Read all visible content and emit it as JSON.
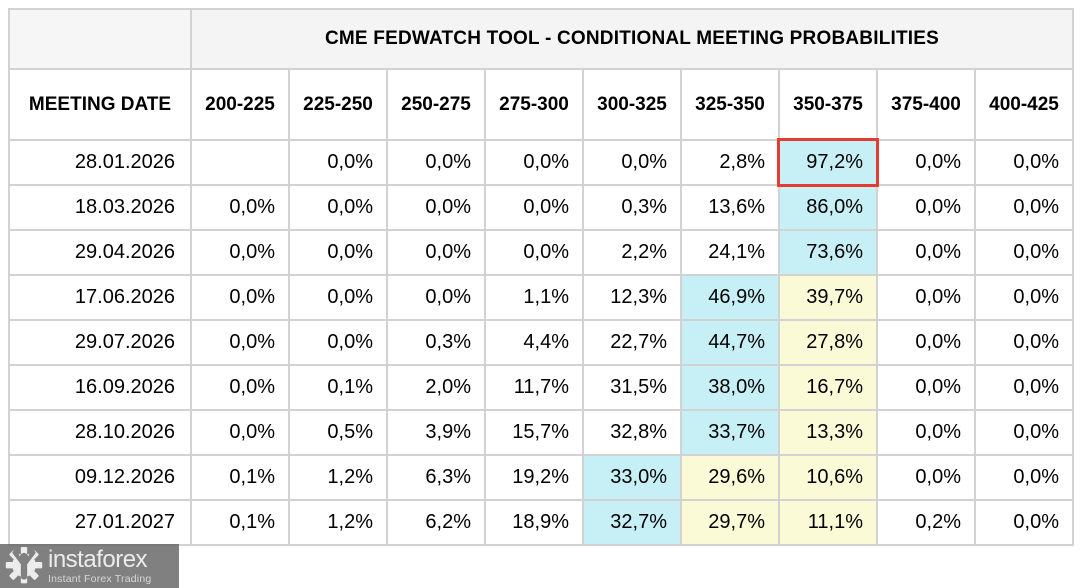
{
  "title": "CME FEDWATCH TOOL - CONDITIONAL MEETING PROBABILITIES",
  "chart_data": {
    "type": "table",
    "title": "CME FEDWATCH TOOL - CONDITIONAL MEETING PROBABILITIES",
    "row_header": "MEETING DATE",
    "columns": [
      "200-225",
      "225-250",
      "250-275",
      "275-300",
      "300-325",
      "325-350",
      "350-375",
      "375-400",
      "400-425"
    ],
    "rows": [
      {
        "date": "28.01.2026",
        "values": [
          "",
          "0,0%",
          "0,0%",
          "0,0%",
          "0,0%",
          "2,8%",
          "97,2%",
          "0,0%",
          "0,0%"
        ],
        "marks": [
          "",
          "",
          "",
          "",
          "",
          "",
          "cyan",
          "",
          ""
        ]
      },
      {
        "date": "18.03.2026",
        "values": [
          "0,0%",
          "0,0%",
          "0,0%",
          "0,0%",
          "0,3%",
          "13,6%",
          "86,0%",
          "0,0%",
          "0,0%"
        ],
        "marks": [
          "",
          "",
          "",
          "",
          "",
          "",
          "cyan",
          "",
          ""
        ]
      },
      {
        "date": "29.04.2026",
        "values": [
          "0,0%",
          "0,0%",
          "0,0%",
          "0,0%",
          "2,2%",
          "24,1%",
          "73,6%",
          "0,0%",
          "0,0%"
        ],
        "marks": [
          "",
          "",
          "",
          "",
          "",
          "",
          "cyan",
          "",
          ""
        ]
      },
      {
        "date": "17.06.2026",
        "values": [
          "0,0%",
          "0,0%",
          "0,0%",
          "1,1%",
          "12,3%",
          "46,9%",
          "39,7%",
          "0,0%",
          "0,0%"
        ],
        "marks": [
          "",
          "",
          "",
          "",
          "",
          "cyan",
          "yellow",
          "",
          ""
        ]
      },
      {
        "date": "29.07.2026",
        "values": [
          "0,0%",
          "0,0%",
          "0,3%",
          "4,4%",
          "22,7%",
          "44,7%",
          "27,8%",
          "0,0%",
          "0,0%"
        ],
        "marks": [
          "",
          "",
          "",
          "",
          "",
          "cyan",
          "yellow",
          "",
          ""
        ]
      },
      {
        "date": "16.09.2026",
        "values": [
          "0,0%",
          "0,1%",
          "2,0%",
          "11,7%",
          "31,5%",
          "38,0%",
          "16,7%",
          "0,0%",
          "0,0%"
        ],
        "marks": [
          "",
          "",
          "",
          "",
          "",
          "cyan",
          "yellow",
          "",
          ""
        ]
      },
      {
        "date": "28.10.2026",
        "values": [
          "0,0%",
          "0,5%",
          "3,9%",
          "15,7%",
          "32,8%",
          "33,7%",
          "13,3%",
          "0,0%",
          "0,0%"
        ],
        "marks": [
          "",
          "",
          "",
          "",
          "",
          "cyan",
          "yellow",
          "",
          ""
        ]
      },
      {
        "date": "09.12.2026",
        "values": [
          "0,1%",
          "1,2%",
          "6,3%",
          "19,2%",
          "33,0%",
          "29,6%",
          "10,6%",
          "0,0%",
          "0,0%"
        ],
        "marks": [
          "",
          "",
          "",
          "",
          "cyan",
          "yellow",
          "yellow",
          "",
          ""
        ]
      },
      {
        "date": "27.01.2027",
        "values": [
          "0,1%",
          "1,2%",
          "6,2%",
          "18,9%",
          "32,7%",
          "29,7%",
          "11,1%",
          "0,2%",
          "0,0%"
        ],
        "marks": [
          "",
          "",
          "",
          "",
          "cyan",
          "yellow",
          "yellow",
          "",
          ""
        ]
      }
    ],
    "red_box": {
      "row": 0,
      "col": 6
    },
    "legend": "cyan = highest probability bucket, yellow = secondary bucket, red box = current pricing highlight"
  },
  "watermark": {
    "brand": "instaforex",
    "tagline": "Instant Forex Trading"
  },
  "colors": {
    "highlight_cyan": "#c7eff6",
    "highlight_yellow": "#fafad7",
    "red_box": "#e53c32",
    "header_bg": "#f4f4f4",
    "border": "#d2d2d2"
  }
}
